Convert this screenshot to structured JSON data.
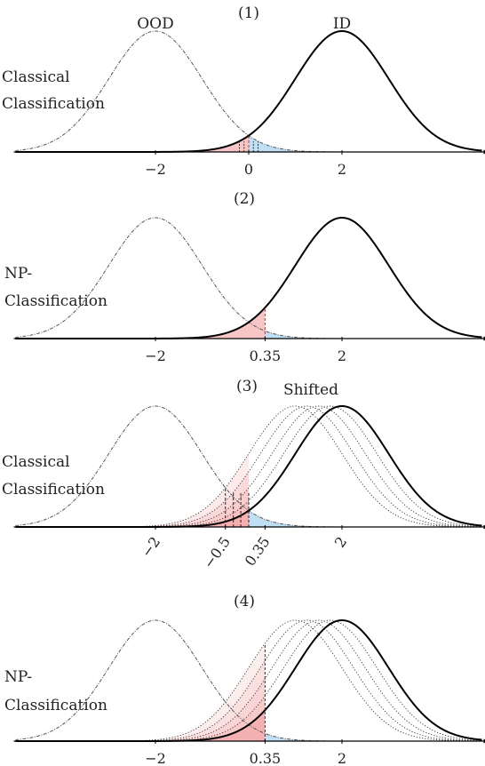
{
  "colors": {
    "ood": "#555555",
    "id": "#000000",
    "red": "#f4a0a0",
    "blue": "#a8d4f0",
    "redline": "#cc3333"
  },
  "panels": [
    {
      "title": "(1)",
      "side_label": [
        "Classical",
        "Classification"
      ],
      "curve_labels": {
        "ood": "OOD",
        "id": "ID"
      },
      "ticks": [
        {
          "label": "−2",
          "value": -2
        },
        {
          "label": "0",
          "value": 0
        },
        {
          "label": "2",
          "value": 2
        }
      ],
      "threshold": 0,
      "shifts": [],
      "threshold_label": "",
      "shifted_label": ""
    },
    {
      "title": "(2)",
      "side_label": [
        "NP-",
        "Classification"
      ],
      "curve_labels": {
        "ood": "",
        "id": ""
      },
      "ticks": [
        {
          "label": "−2",
          "value": -2
        },
        {
          "label": "0.35",
          "value": 0.35
        },
        {
          "label": "2",
          "value": 2
        }
      ],
      "threshold": 0.35,
      "shifts": [],
      "threshold_label": "",
      "shifted_label": ""
    },
    {
      "title": "(3)",
      "side_label": [
        "Classical",
        "Classification"
      ],
      "curve_labels": {
        "ood": "",
        "id": ""
      },
      "ticks": [
        {
          "label": "−2",
          "value": -2
        },
        {
          "label": "−0.5",
          "value": -0.5
        },
        {
          "label": "0.35",
          "value": 0.35
        },
        {
          "label": "2",
          "value": 2
        }
      ],
      "threshold": 0,
      "shifts": [
        1.0,
        1.25,
        1.5,
        1.75
      ],
      "threshold_label": "",
      "shifted_label": "Shifted"
    },
    {
      "title": "(4)",
      "side_label": [
        "NP-",
        "Classification"
      ],
      "curve_labels": {
        "ood": "",
        "id": ""
      },
      "ticks": [
        {
          "label": "−2",
          "value": -2
        },
        {
          "label": "0.35",
          "value": 0.35
        },
        {
          "label": "2",
          "value": 2
        }
      ],
      "threshold": 0.35,
      "shifts": [
        1.0,
        1.25,
        1.5,
        1.75
      ],
      "threshold_label": "",
      "shifted_label": ""
    }
  ],
  "distribution": {
    "ood_mean": -2,
    "id_mean": 2,
    "sigma": 1,
    "x_range": [
      -5,
      5
    ]
  }
}
